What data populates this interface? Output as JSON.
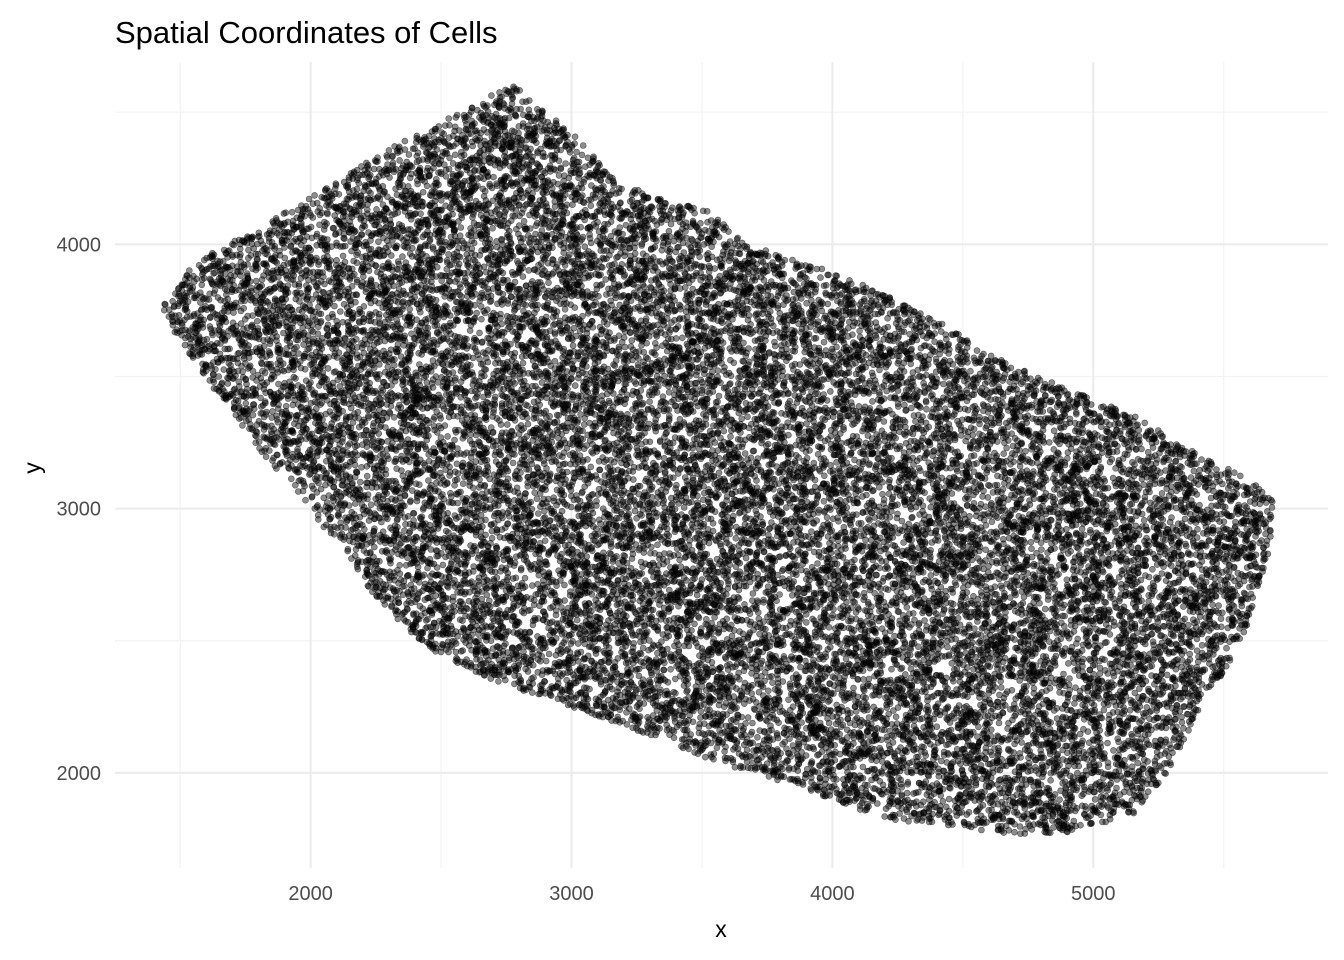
{
  "chart_data": {
    "type": "scatter",
    "title": "Spatial Coordinates of Cells",
    "xlabel": "x",
    "ylabel": "y",
    "xlim": [
      1250,
      5900
    ],
    "ylim": [
      1640,
      4690
    ],
    "x_major_ticks": [
      2000,
      3000,
      4000,
      5000
    ],
    "x_tick_labels": [
      "2000",
      "3000",
      "4000",
      "5000"
    ],
    "x_minor_ticks": [
      1500,
      2500,
      3500,
      4500,
      5500
    ],
    "y_major_ticks": [
      2000,
      3000,
      4000
    ],
    "y_tick_labels": [
      "2000",
      "3000",
      "4000"
    ],
    "y_minor_ticks": [
      2500,
      3500,
      4500
    ],
    "grid": true,
    "legend": "none",
    "point_color": "#000000",
    "point_fill_opacity": 0.45,
    "approx_point_count": 24000,
    "region_outline": {
      "x": [
        1430,
        1520,
        1640,
        1830,
        2040,
        2280,
        2470,
        2620,
        2710,
        2790,
        2870,
        3010,
        3160,
        3310,
        3520,
        3670,
        3900,
        4110,
        4370,
        4630,
        4880,
        5140,
        5400,
        5620,
        5700,
        5670,
        5580,
        5450,
        5360,
        5280,
        5150,
        4930,
        4760,
        4500,
        4250,
        4040,
        3830,
        3560,
        3310,
        3060,
        2790,
        2570,
        2400,
        2240,
        2090,
        1950,
        1820,
        1700,
        1580,
        1470
      ],
      "y": [
        3770,
        3890,
        3980,
        4080,
        4200,
        4350,
        4450,
        4520,
        4580,
        4600,
        4520,
        4420,
        4250,
        4180,
        4130,
        4000,
        3930,
        3850,
        3730,
        3570,
        3460,
        3360,
        3210,
        3100,
        3040,
        2820,
        2520,
        2300,
        2150,
        1990,
        1840,
        1780,
        1760,
        1790,
        1820,
        1880,
        1960,
        2040,
        2140,
        2230,
        2320,
        2400,
        2510,
        2680,
        2880,
        3060,
        3200,
        3360,
        3520,
        3680
      ]
    }
  }
}
